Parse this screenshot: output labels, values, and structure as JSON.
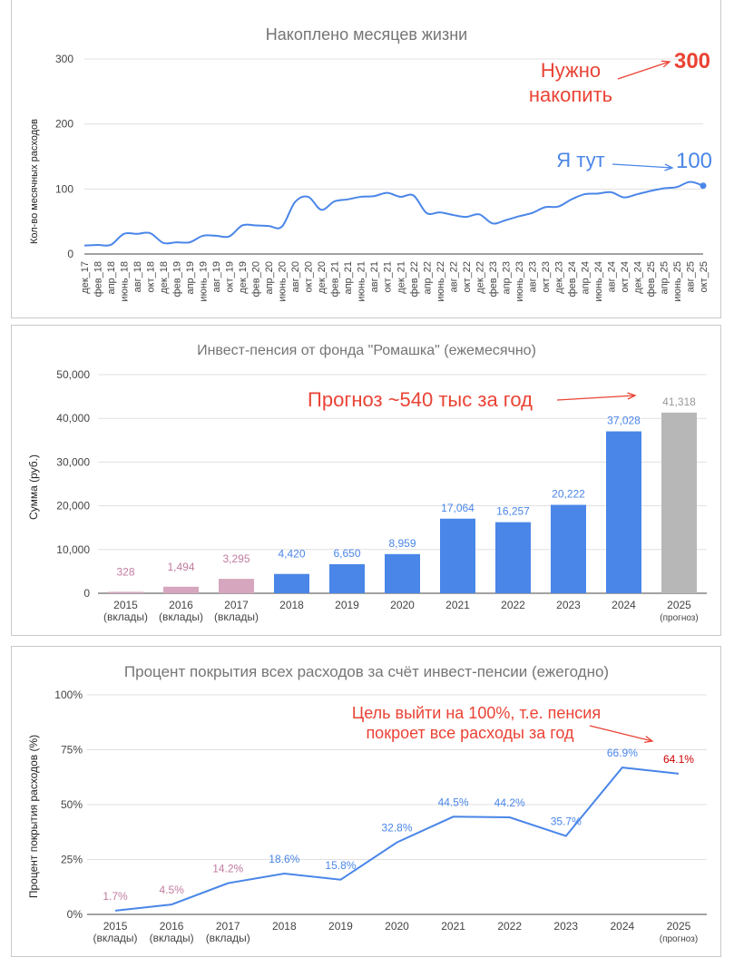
{
  "colors": {
    "line": "#4a86e8",
    "bar_blue": "#4a86e8",
    "bar_pink": "#d5a6bd",
    "bar_gray": "#b7b7b7",
    "label_pink": "#c27ba0",
    "annotation_red": "#ea4335",
    "grid": "#e0e0e0",
    "text": "#444444",
    "title": "#757575"
  },
  "chart_data": [
    {
      "type": "line",
      "title": "Накоплено месяцев жизни",
      "xlabel": "",
      "ylabel": "Кол-во месячных расходов",
      "ylim": [
        0,
        300
      ],
      "yticks": [
        "0",
        "100",
        "200",
        "300"
      ],
      "x": [
        "дек_17",
        "фев_18",
        "апр_18",
        "июнь_18",
        "авг_18",
        "окт_18",
        "дек_18",
        "фев_19",
        "апр_19",
        "июнь_19",
        "авг_19",
        "окт_19",
        "дек_19",
        "фев_20",
        "апр_20",
        "июнь_20",
        "авг_20",
        "окт_20",
        "дек_20",
        "фев_21",
        "апр_21",
        "июнь_21",
        "авг_21",
        "окт_21",
        "дек_21",
        "фев_22",
        "апр_22",
        "июнь_22",
        "авг_22",
        "окт_22",
        "дек_22",
        "фев_23",
        "апр_23",
        "июнь_23",
        "авг_23",
        "окт_23",
        "дек_23",
        "фев_24",
        "апр_24",
        "июнь_24",
        "авг_24",
        "окт_24",
        "дек_24",
        "фев_25",
        "апр_25",
        "июнь_25",
        "авг_25",
        "окт_25"
      ],
      "values": [
        13,
        14,
        14,
        31,
        31,
        32,
        17,
        18,
        18,
        28,
        28,
        27,
        44,
        44,
        43,
        42,
        80,
        88,
        68,
        81,
        84,
        88,
        89,
        94,
        88,
        90,
        63,
        64,
        60,
        57,
        61,
        47,
        52,
        58,
        63,
        72,
        73,
        84,
        92,
        93,
        95,
        87,
        92,
        97,
        101,
        103,
        111,
        105
      ],
      "annotations": [
        {
          "text": "Нужно",
          "color": "red"
        },
        {
          "text": "накопить",
          "color": "red"
        },
        {
          "text": "300",
          "color": "red"
        },
        {
          "text": "Я тут",
          "color": "blue"
        },
        {
          "text": "100",
          "color": "blue"
        }
      ]
    },
    {
      "type": "bar",
      "title": "Инвест-пенсия от фонда \"Ромашка\" (ежемесячно)",
      "xlabel": "",
      "ylabel": "Сумма (руб.)",
      "ylim": [
        0,
        50000
      ],
      "yticks": [
        "0",
        "10,000",
        "20,000",
        "30,000",
        "40,000",
        "50,000"
      ],
      "categories": [
        "2015",
        "2016",
        "2017",
        "2018",
        "2019",
        "2020",
        "2021",
        "2022",
        "2023",
        "2024",
        "2025"
      ],
      "category_sublabels": [
        "(вклады)",
        "(вклады)",
        "(вклады)",
        "",
        "",
        "",
        "",
        "",
        "",
        "",
        "(прогноз)"
      ],
      "values": [
        328,
        1494,
        3295,
        4420,
        6650,
        8959,
        17064,
        16257,
        20222,
        37028,
        41318
      ],
      "data_labels": [
        "328",
        "1,494",
        "3,295",
        "4,420",
        "6,650",
        "8,959",
        "17,064",
        "16,257",
        "20,222",
        "37,028",
        "41,318"
      ],
      "bar_groups": [
        "pink",
        "pink",
        "pink",
        "blue",
        "blue",
        "blue",
        "blue",
        "blue",
        "blue",
        "blue",
        "gray"
      ],
      "annotation": "Прогноз ~540 тыс за год"
    },
    {
      "type": "line",
      "title": "Процент покрытия всех расходов за счёт инвест-пенсии (ежегодно)",
      "xlabel": "",
      "ylabel": "Процент покрытия расходов  (%)",
      "ylim": [
        0,
        100
      ],
      "yticks": [
        "0%",
        "25%",
        "50%",
        "75%",
        "100%"
      ],
      "categories": [
        "2015",
        "2016",
        "2017",
        "2018",
        "2019",
        "2020",
        "2021",
        "2022",
        "2023",
        "2024",
        "2025"
      ],
      "category_sublabels": [
        "(вклады)",
        "(вклады)",
        "(вклады)",
        "",
        "",
        "",
        "",
        "",
        "",
        "",
        "(прогноз)"
      ],
      "values": [
        1.7,
        4.5,
        14.2,
        18.6,
        15.8,
        32.8,
        44.5,
        44.2,
        35.7,
        66.9,
        64.1
      ],
      "data_labels": [
        "1.7%",
        "4.5%",
        "14.2%",
        "18.6%",
        "15.8%",
        "32.8%",
        "44.5%",
        "44.2%",
        "35.7%",
        "66.9%",
        "64.1%"
      ],
      "label_groups": [
        "pink",
        "pink",
        "pink",
        "blue",
        "blue",
        "blue",
        "blue",
        "blue",
        "blue",
        "blue",
        "red"
      ],
      "annotations": [
        "Цель выйти на 100%, т.е. пенсия",
        "покроет все расходы за год"
      ]
    }
  ]
}
